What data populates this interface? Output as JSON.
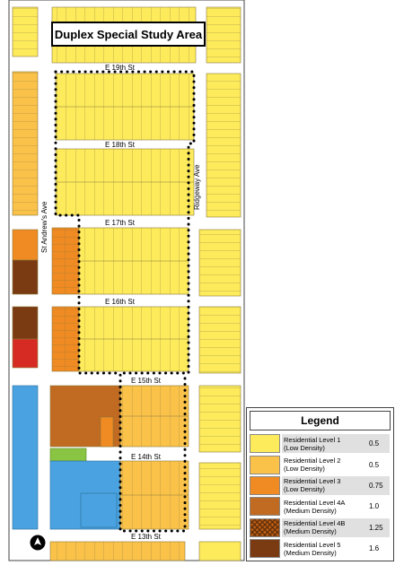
{
  "map": {
    "title": "Duplex Special Study Area",
    "streets": {
      "e19": "E 19th St",
      "e18": "E 18th St",
      "e17": "E 17th St",
      "e16": "E 16th St",
      "e15": "E 15th St",
      "e14": "E 14th St",
      "e13": "E 13th St",
      "st_andrews": "St Andrew's Ave",
      "ridgeway": "Ridgeway Ave"
    },
    "colors": {
      "residential_level_1": "#fdeb5c",
      "residential_level_2": "#fbc24a",
      "residential_level_3": "#f08a22",
      "residential_level_4a": "#c06a22",
      "residential_level_4b": "#b35a14",
      "residential_level_5": "#7a3a12",
      "institutional_blue": "#4aa3e0",
      "commercial_red": "#d62b22",
      "park_green": "#8ac443",
      "study_area_outline": "#000000"
    },
    "north_arrow_icon": "north-arrow-icon"
  },
  "legend": {
    "title": "Legend",
    "items": [
      {
        "name": "Residential Level 1",
        "density": "(Low Density)",
        "value": "0.5",
        "color": "#fdeb5c",
        "pattern": "solid"
      },
      {
        "name": "Residential Level 2",
        "density": "(Low Density)",
        "value": "0.5",
        "color": "#fbc24a",
        "pattern": "solid"
      },
      {
        "name": "Residential Level 3",
        "density": "(Low Density)",
        "value": "0.75",
        "color": "#f08a22",
        "pattern": "solid"
      },
      {
        "name": "Residential Level 4A",
        "density": "(Medium Density)",
        "value": "1.0",
        "color": "#c06a22",
        "pattern": "solid"
      },
      {
        "name": "Residential Level 4B",
        "density": "(Medium Density)",
        "value": "1.25",
        "color": "#b35a14",
        "pattern": "crosshatch"
      },
      {
        "name": "Residential Level 5",
        "density": "(Medium Density)",
        "value": "1.6",
        "color": "#7a3a12",
        "pattern": "solid"
      }
    ]
  }
}
